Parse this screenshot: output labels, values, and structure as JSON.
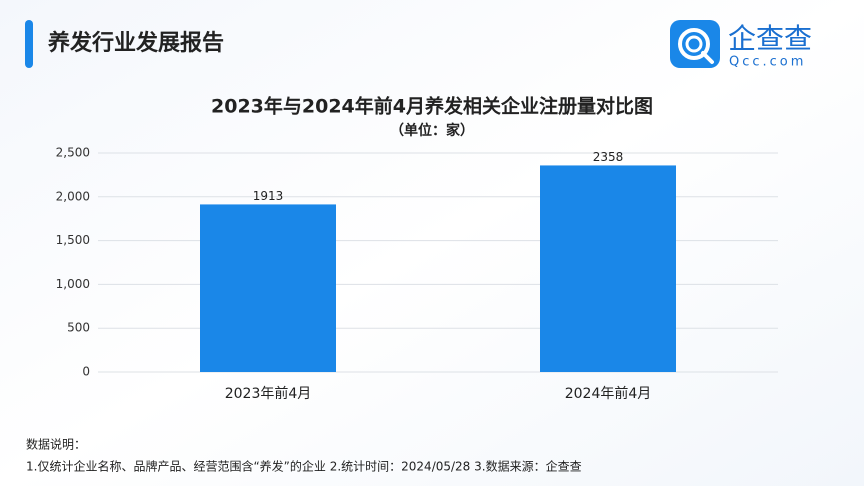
{
  "header": {
    "title": "养发行业发展报告"
  },
  "logo": {
    "name": "企查查",
    "site": "Qcc.com"
  },
  "chart_data": {
    "type": "bar",
    "title": "2023年与2024年前4月养发相关企业注册量对比图",
    "subtitle": "（单位：家）",
    "categories": [
      "2023年前4月",
      "2024年前4月"
    ],
    "values": [
      1913,
      2358
    ],
    "color": "#1a87e8",
    "ylim": [
      0,
      2500
    ],
    "yticks": [
      0,
      500,
      {
        "value": 1000,
        "label": "1,000"
      },
      {
        "value": 1500,
        "label": "1,500"
      },
      {
        "value": 2000,
        "label": "2,000"
      },
      {
        "value": 2500,
        "label": "2,500"
      }
    ],
    "grid": true
  },
  "footnote": {
    "heading": "数据说明：",
    "text": "1.仅统计企业名称、品牌产品、经营范围含“养发”的企业  2.统计时间：2024/05/28  3.数据来源：企查查"
  }
}
